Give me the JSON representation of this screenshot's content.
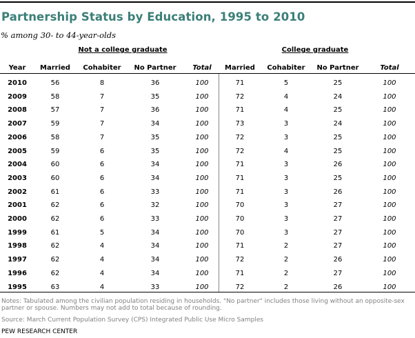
{
  "title": "Partnership Status by Education, 1995 to 2010",
  "subtitle": "% among 30- to 44-year-olds",
  "groups": [
    "Not a college graduate",
    "College graduate"
  ],
  "columns": [
    "Year",
    "Married",
    "Cohabiter",
    "No Partner",
    "Total",
    "Married",
    "Cohabiter",
    "No Partner",
    "Total"
  ],
  "notes": "Notes: Tabulated among the civilian population residing in households. \"No partner\" includes those living without an opposite-sex partner or spouse. Numbers may not add to total because of rounding.",
  "source": "Source: March Current Population Survey (CPS) Integrated Public Use Micro Samples",
  "credit": "PEW RESEARCH CENTER",
  "colors": {
    "title": "#3b7f78",
    "notes": "#808080"
  },
  "chart_data": {
    "type": "table",
    "title": "Partnership Status by Education, 1995 to 2010",
    "subtitle": "% among 30- to 44-year-olds",
    "rows": [
      [
        "2010",
        "56",
        "8",
        "36",
        "100",
        "71",
        "5",
        "25",
        "100"
      ],
      [
        "2009",
        "58",
        "7",
        "35",
        "100",
        "72",
        "4",
        "24",
        "100"
      ],
      [
        "2008",
        "57",
        "7",
        "36",
        "100",
        "71",
        "4",
        "25",
        "100"
      ],
      [
        "2007",
        "59",
        "7",
        "34",
        "100",
        "73",
        "3",
        "24",
        "100"
      ],
      [
        "2006",
        "58",
        "7",
        "35",
        "100",
        "72",
        "3",
        "25",
        "100"
      ],
      [
        "2005",
        "59",
        "6",
        "35",
        "100",
        "72",
        "4",
        "25",
        "100"
      ],
      [
        "2004",
        "60",
        "6",
        "34",
        "100",
        "71",
        "3",
        "26",
        "100"
      ],
      [
        "2003",
        "60",
        "6",
        "34",
        "100",
        "71",
        "3",
        "25",
        "100"
      ],
      [
        "2002",
        "61",
        "6",
        "33",
        "100",
        "71",
        "3",
        "26",
        "100"
      ],
      [
        "2001",
        "62",
        "6",
        "32",
        "100",
        "70",
        "3",
        "27",
        "100"
      ],
      [
        "2000",
        "62",
        "6",
        "33",
        "100",
        "70",
        "3",
        "27",
        "100"
      ],
      [
        "1999",
        "61",
        "5",
        "34",
        "100",
        "70",
        "3",
        "27",
        "100"
      ],
      [
        "1998",
        "62",
        "4",
        "34",
        "100",
        "71",
        "2",
        "27",
        "100"
      ],
      [
        "1997",
        "62",
        "4",
        "34",
        "100",
        "72",
        "2",
        "26",
        "100"
      ],
      [
        "1996",
        "62",
        "4",
        "34",
        "100",
        "71",
        "2",
        "27",
        "100"
      ],
      [
        "1995",
        "63",
        "4",
        "33",
        "100",
        "72",
        "2",
        "26",
        "100"
      ]
    ]
  }
}
